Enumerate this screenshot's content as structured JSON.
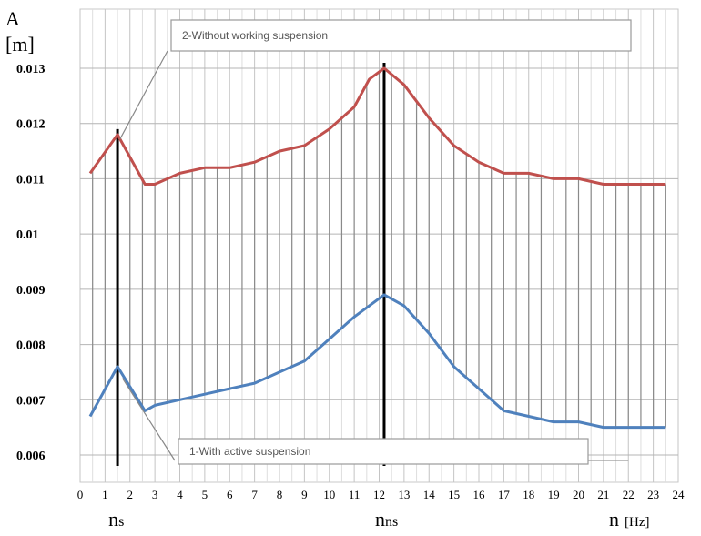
{
  "chart_data": {
    "type": "line",
    "title": "",
    "ylabel_line1": "A",
    "ylabel_line2": "[m]",
    "xlabel": "n",
    "xlabel_unit": "[Hz]",
    "xlim": [
      0,
      24
    ],
    "ylim": [
      0.006,
      0.0133
    ],
    "grid": true,
    "x_ticks": [
      "0",
      "1",
      "2",
      "3",
      "4",
      "5",
      "6",
      "7",
      "8",
      "9",
      "10",
      "11",
      "12",
      "13",
      "14",
      "15",
      "16",
      "17",
      "18",
      "19",
      "20",
      "21",
      "22",
      "23",
      "24"
    ],
    "y_ticks": [
      "0.006",
      "0.007",
      "0.008",
      "0.009",
      "0.01",
      "0.011",
      "0.012",
      "0.013"
    ],
    "x_markers": [
      {
        "label": "n",
        "sub": "s",
        "x": 1.5
      },
      {
        "label": "n",
        "sub": "ns",
        "x": 12.2
      }
    ],
    "series": [
      {
        "name": "2-Without working suspension",
        "color": "#c0504d",
        "x": [
          0.4,
          1.5,
          2.6,
          3.0,
          4.0,
          5.0,
          6.0,
          7.0,
          8.0,
          9.0,
          10.0,
          11.0,
          11.6,
          12.2,
          13.0,
          14.0,
          15.0,
          16.0,
          17.0,
          18.0,
          19.0,
          20.0,
          21.0,
          22.0,
          23.0,
          23.5
        ],
        "values": [
          0.0111,
          0.0118,
          0.0109,
          0.0109,
          0.0111,
          0.0112,
          0.0112,
          0.0113,
          0.0115,
          0.0116,
          0.0119,
          0.0123,
          0.0128,
          0.013,
          0.0127,
          0.0121,
          0.0116,
          0.0113,
          0.0111,
          0.0111,
          0.011,
          0.011,
          0.0109,
          0.0109,
          0.0109,
          0.0109
        ]
      },
      {
        "name": "1-With active suspension",
        "color": "#4f81bd",
        "x": [
          0.4,
          1.5,
          2.6,
          3.0,
          4.0,
          5.0,
          6.0,
          7.0,
          8.0,
          9.0,
          10.0,
          11.0,
          12.2,
          13.0,
          14.0,
          15.0,
          16.0,
          17.0,
          18.0,
          19.0,
          20.0,
          21.0,
          22.0,
          23.0,
          23.5
        ],
        "values": [
          0.0067,
          0.0076,
          0.0068,
          0.0069,
          0.007,
          0.0071,
          0.0072,
          0.0073,
          0.0075,
          0.0077,
          0.0081,
          0.0085,
          0.0089,
          0.0087,
          0.0082,
          0.0076,
          0.0072,
          0.0068,
          0.0067,
          0.0066,
          0.0066,
          0.0065,
          0.0065,
          0.0065,
          0.0065
        ]
      }
    ],
    "annotations": [
      {
        "text": "2-Without working suspension",
        "series_index": 0,
        "placement": "top-left"
      },
      {
        "text": "1-With active suspension",
        "series_index": 1,
        "placement": "bottom-center"
      }
    ]
  }
}
